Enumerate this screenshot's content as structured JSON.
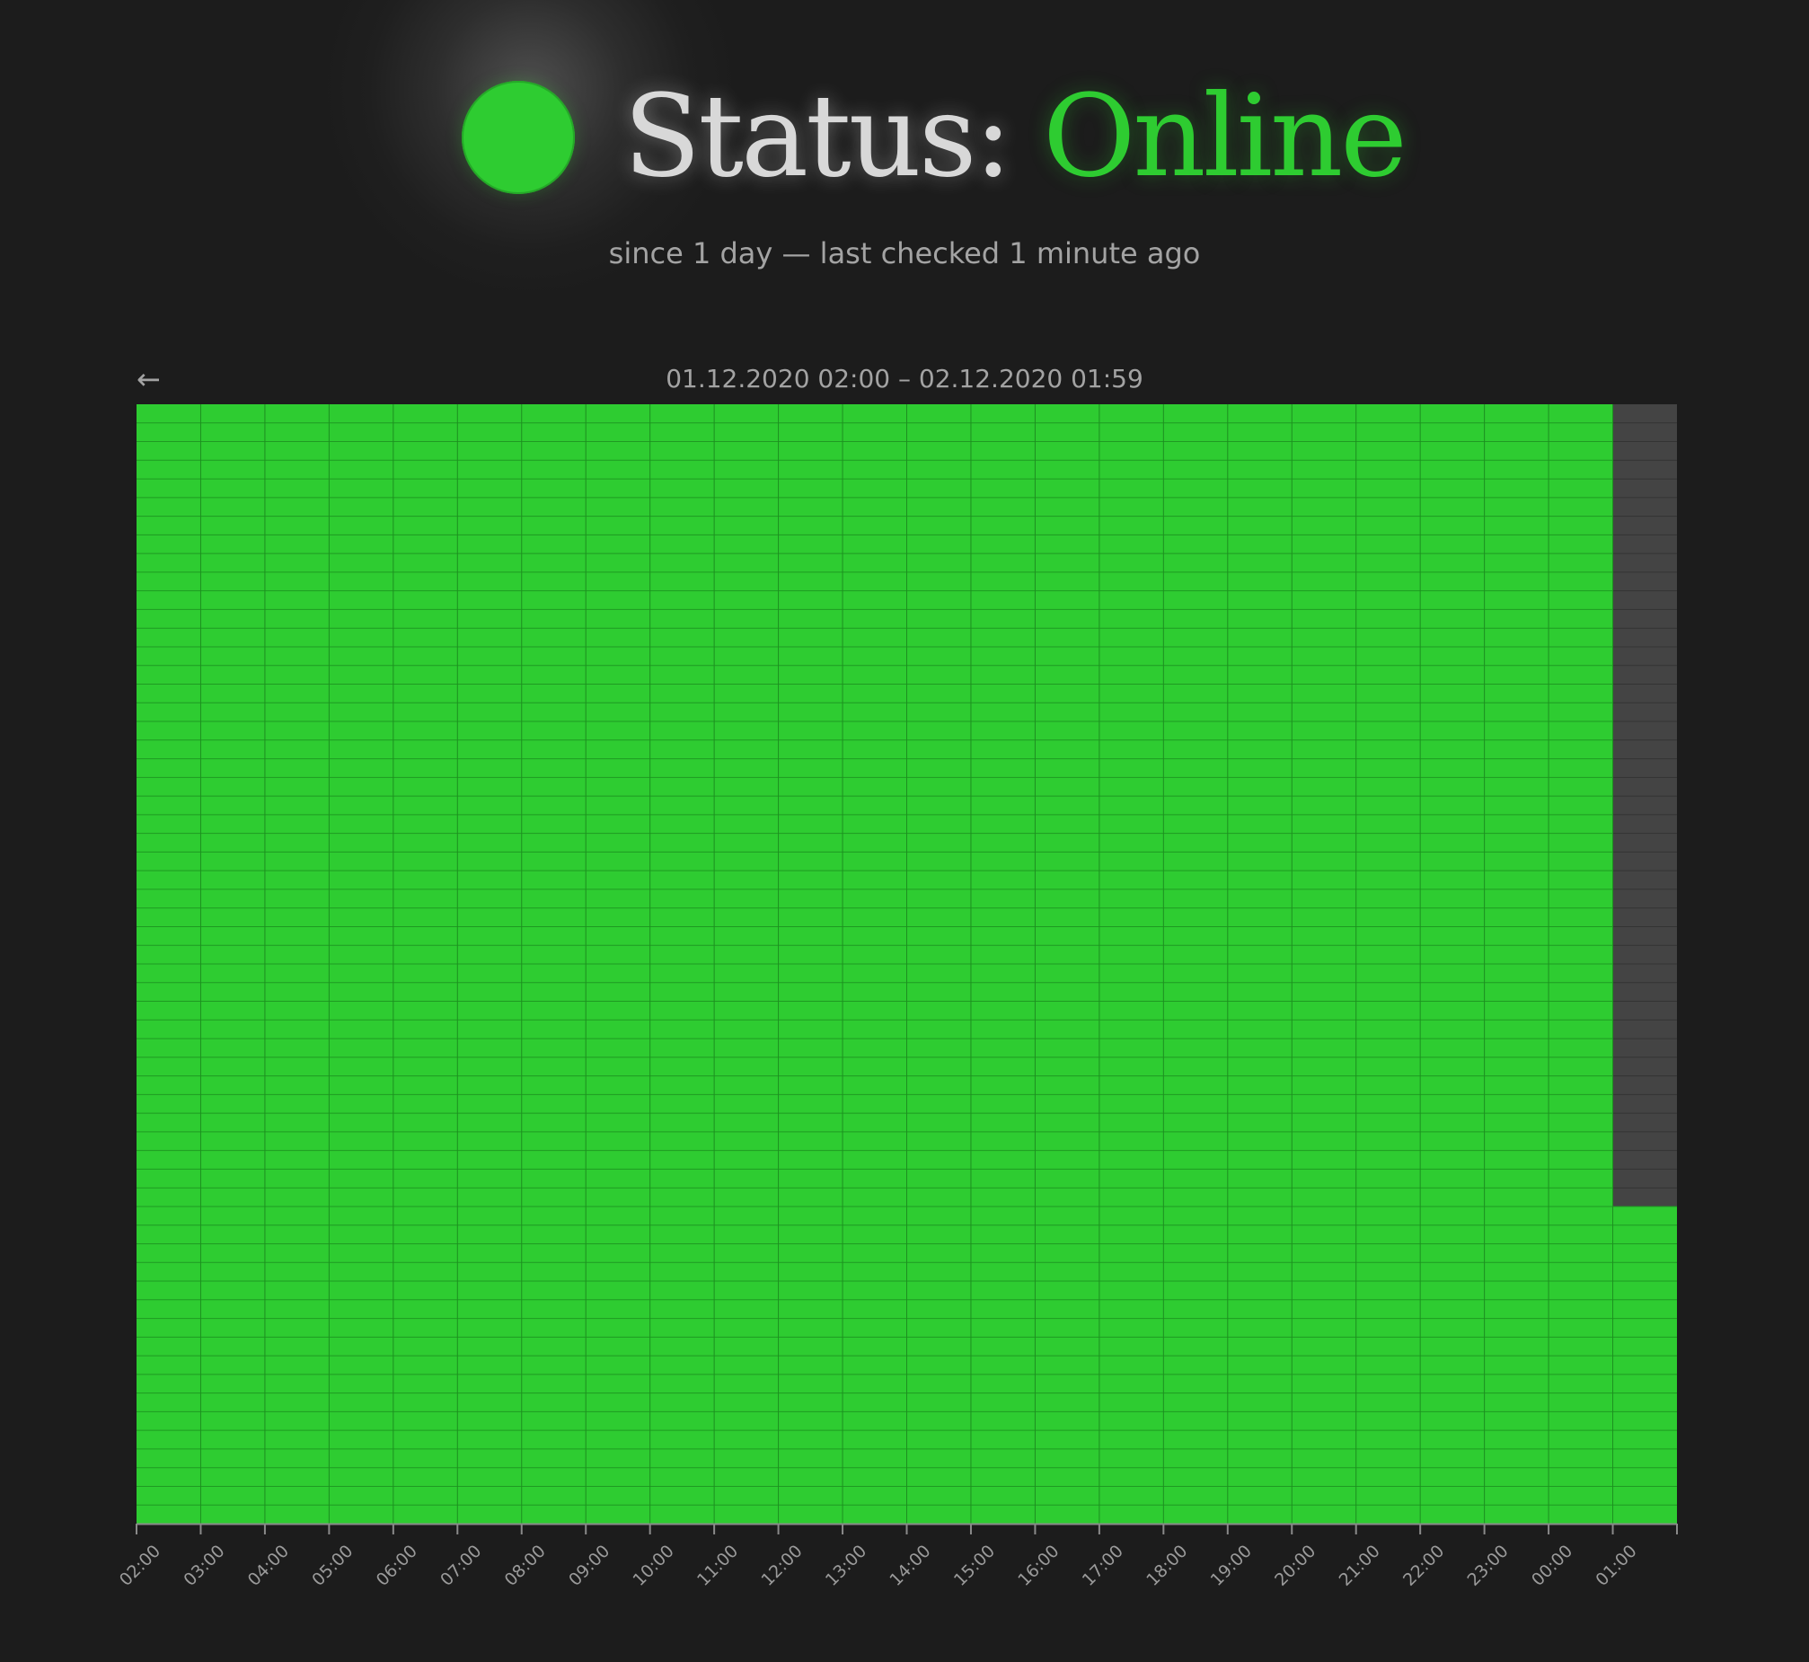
{
  "header": {
    "status_label": "Status:",
    "status_value": "Online",
    "subtitle": "since 1 day — last checked 1 minute ago",
    "status_color": "#2ecc31"
  },
  "navigation": {
    "back_arrow": "←",
    "range_label": "01.12.2020 02:00 – 02.12.2020 01:59"
  },
  "chart_data": {
    "type": "heatmap",
    "title": "",
    "x_labels": [
      "02:00",
      "03:00",
      "04:00",
      "05:00",
      "06:00",
      "07:00",
      "08:00",
      "09:00",
      "10:00",
      "11:00",
      "12:00",
      "13:00",
      "14:00",
      "15:00",
      "16:00",
      "17:00",
      "18:00",
      "19:00",
      "20:00",
      "21:00",
      "22:00",
      "23:00",
      "00:00",
      "01:00"
    ],
    "rows_per_hour": 60,
    "states": {
      "online": "#2ecc31",
      "no_data": "#444444"
    },
    "columns": [
      {
        "hour": "02:00",
        "online_minutes": 60
      },
      {
        "hour": "03:00",
        "online_minutes": 60
      },
      {
        "hour": "04:00",
        "online_minutes": 60
      },
      {
        "hour": "05:00",
        "online_minutes": 60
      },
      {
        "hour": "06:00",
        "online_minutes": 60
      },
      {
        "hour": "07:00",
        "online_minutes": 60
      },
      {
        "hour": "08:00",
        "online_minutes": 60
      },
      {
        "hour": "09:00",
        "online_minutes": 60
      },
      {
        "hour": "10:00",
        "online_minutes": 60
      },
      {
        "hour": "11:00",
        "online_minutes": 60
      },
      {
        "hour": "12:00",
        "online_minutes": 60
      },
      {
        "hour": "13:00",
        "online_minutes": 60
      },
      {
        "hour": "14:00",
        "online_minutes": 60
      },
      {
        "hour": "15:00",
        "online_minutes": 60
      },
      {
        "hour": "16:00",
        "online_minutes": 60
      },
      {
        "hour": "17:00",
        "online_minutes": 60
      },
      {
        "hour": "18:00",
        "online_minutes": 60
      },
      {
        "hour": "19:00",
        "online_minutes": 60
      },
      {
        "hour": "20:00",
        "online_minutes": 60
      },
      {
        "hour": "21:00",
        "online_minutes": 60
      },
      {
        "hour": "22:00",
        "online_minutes": 60
      },
      {
        "hour": "23:00",
        "online_minutes": 60
      },
      {
        "hour": "00:00",
        "online_minutes": 60
      },
      {
        "hour": "01:00",
        "online_minutes": 17
      }
    ]
  }
}
